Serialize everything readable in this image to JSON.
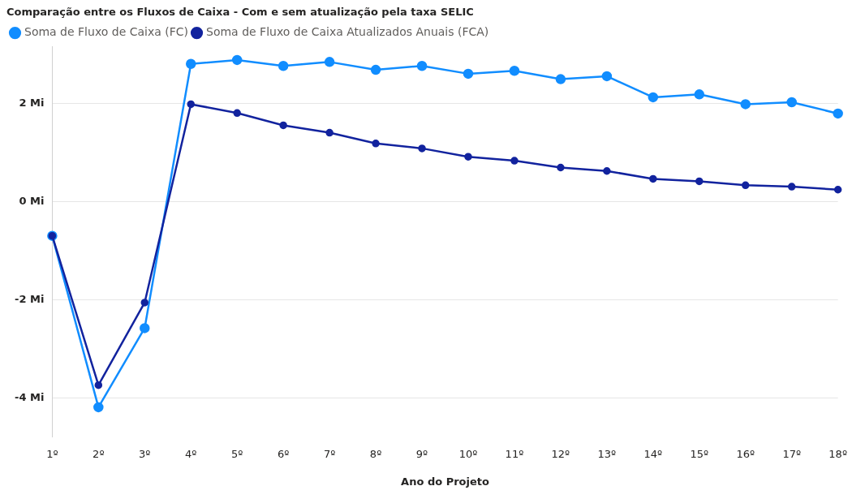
{
  "chart_data": {
    "type": "line",
    "title": "Comparação entre os Fluxos de Caixa - Com e sem atualização pela taxa SELIC",
    "xlabel": "Ano do Projeto",
    "categories": [
      "1º",
      "2º",
      "3º",
      "4º",
      "5º",
      "6º",
      "7º",
      "8º",
      "9º",
      "10º",
      "11º",
      "12º",
      "13º",
      "14º",
      "15º",
      "16º",
      "17º",
      "18º"
    ],
    "series": [
      {
        "name": "Soma de Fluxo de Caixa (FC)",
        "color": "#118dff",
        "values": [
          -0.7,
          -4.19,
          -2.58,
          2.8,
          2.88,
          2.76,
          2.84,
          2.68,
          2.76,
          2.6,
          2.66,
          2.49,
          2.55,
          2.12,
          2.18,
          1.98,
          2.02,
          1.79
        ]
      },
      {
        "name": "Soma de Fluxo de Caixa Atualizados Anuais (FCA)",
        "color": "#12239e",
        "values": [
          -0.7,
          -3.74,
          -2.06,
          1.98,
          1.8,
          1.55,
          1.4,
          1.18,
          1.08,
          0.91,
          0.83,
          0.69,
          0.62,
          0.46,
          0.41,
          0.33,
          0.3,
          0.24
        ]
      }
    ],
    "ylim": [
      -4.8,
      3.15
    ],
    "yticks": [
      {
        "value": -4,
        "label": "-4 Mi"
      },
      {
        "value": -2,
        "label": "-2 Mi"
      },
      {
        "value": 0,
        "label": "0 Mi"
      },
      {
        "value": 2,
        "label": "2 Mi"
      }
    ],
    "grid": "y",
    "legend": "top left",
    "marker": "circle",
    "line_style": "solid"
  }
}
